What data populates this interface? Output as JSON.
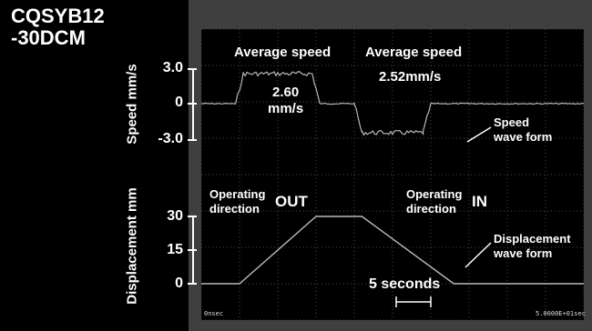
{
  "title": "CQSYB12\n-30DCM",
  "chart_data": [
    {
      "type": "line",
      "ylabel": "Speed mm/s",
      "yticks": [
        "3.0",
        "0",
        "-3.0"
      ],
      "ylim": [
        -3.0,
        3.0
      ],
      "xlim": [
        0,
        50
      ],
      "x": [
        0,
        4.5,
        5.5,
        14.5,
        15.5,
        20,
        21,
        29,
        30,
        50
      ],
      "values": [
        0,
        0,
        2.6,
        2.6,
        0,
        0,
        -2.52,
        -2.52,
        0,
        0
      ],
      "annotations": {
        "out_heading": "Average speed",
        "out_value": "2.60\nmm/s",
        "in_heading": "Average speed",
        "in_value": "2.52mm/s",
        "wave_label": "Speed\nwave form"
      }
    },
    {
      "type": "line",
      "ylabel": "Displacement mm",
      "yticks": [
        "30",
        "15",
        "0"
      ],
      "ylim": [
        0,
        30
      ],
      "xlim": [
        0,
        50
      ],
      "x": [
        0,
        5,
        15,
        21,
        33,
        50
      ],
      "values": [
        0,
        0,
        30,
        30,
        0,
        0
      ],
      "annotations": {
        "out_dir_word": "Operating\ndirection",
        "out_dir": "OUT",
        "in_dir_word": "Operating\ndirection",
        "in_dir": "IN",
        "wave_label": "Displacement\nwave form",
        "scale_label": "5 seconds"
      }
    }
  ],
  "footer": {
    "left": "0nsec",
    "right": "5.0000E+01sec"
  },
  "colors": {
    "trace": "#b8b8b8",
    "grid": "#4a4a4a",
    "text": "#ffffff"
  }
}
